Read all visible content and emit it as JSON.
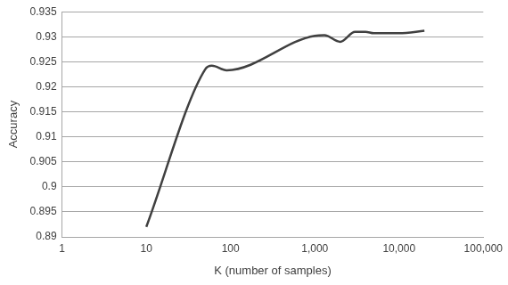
{
  "chart_data": {
    "type": "line",
    "x_label": "K (number of samples)",
    "y_label": "Accuracy",
    "log": "x",
    "grid": "y",
    "color": "#404040",
    "marker": "none",
    "x": [
      10,
      50,
      60,
      90,
      1000,
      1300,
      2000,
      3000,
      4000,
      5000,
      10000,
      20000
    ],
    "values": [
      0.892,
      0.9235,
      0.9242,
      0.9233,
      0.9302,
      0.9303,
      0.929,
      0.931,
      0.931,
      0.9307,
      0.9307,
      0.9312
    ],
    "xlim": [
      1,
      100000
    ],
    "xticks": [
      1,
      10,
      100,
      {
        "value": 1000,
        "label": "1,000"
      },
      {
        "value": 10000,
        "label": "10,000"
      },
      {
        "value": 100000,
        "label": "100,000"
      }
    ],
    "ylim": [
      0.89,
      0.935
    ],
    "yticks": [
      0.89,
      0.895,
      0.9,
      0.905,
      0.91,
      0.915,
      0.92,
      0.925,
      0.93,
      0.935
    ]
  }
}
